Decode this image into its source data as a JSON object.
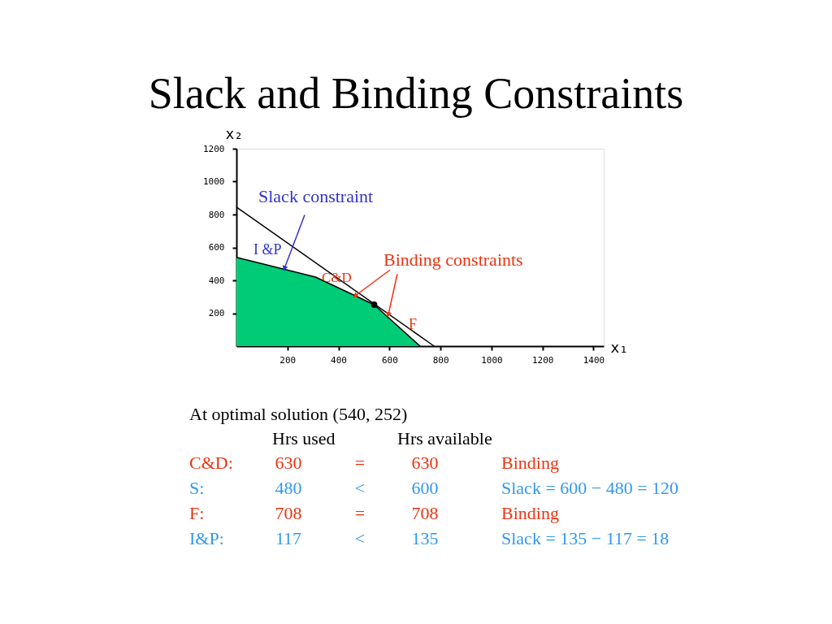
{
  "chart_data": {
    "type": "line",
    "title": "Slack and Binding Constraints",
    "xlabel": "x₁",
    "ylabel": "x₂",
    "xlim": [
      0,
      1440
    ],
    "ylim": [
      0,
      1200
    ],
    "grid": false,
    "xticks": [
      200,
      400,
      600,
      800,
      1000,
      1200,
      1400
    ],
    "yticks": [
      200,
      400,
      600,
      800,
      1000,
      1200
    ],
    "series": [
      {
        "type": "area",
        "color": "#00cc77",
        "x": [
          0,
          310,
          540,
          720
        ],
        "values": [
          540,
          420,
          252,
          0
        ]
      },
      {
        "color": "#000000",
        "x": [
          0,
          775
        ],
        "values": [
          845,
          0
        ]
      },
      {
        "type": "scatter",
        "color": "#000000",
        "x": [
          540
        ],
        "values": [
          252
        ]
      }
    ],
    "annotations": [
      {
        "text": "Slack constraint",
        "x": 188,
        "y": 472
      },
      "I &P",
      "C&D",
      {
        "text": "Binding constraints",
        "x": 465,
        "y": 305
      },
      "F",
      "At optimal solution (540, 252)",
      "Hrs used",
      "Hrs available",
      "C&D:",
      "630",
      "=",
      "630",
      "Binding",
      "S:",
      "480",
      "<",
      "600",
      "Slack = 600 − 480 = 120",
      "F:",
      "708",
      "=",
      "708",
      "Binding",
      "I&P:",
      "117",
      "<",
      "135",
      "Slack = 135 − 117 = 18"
    ]
  }
}
